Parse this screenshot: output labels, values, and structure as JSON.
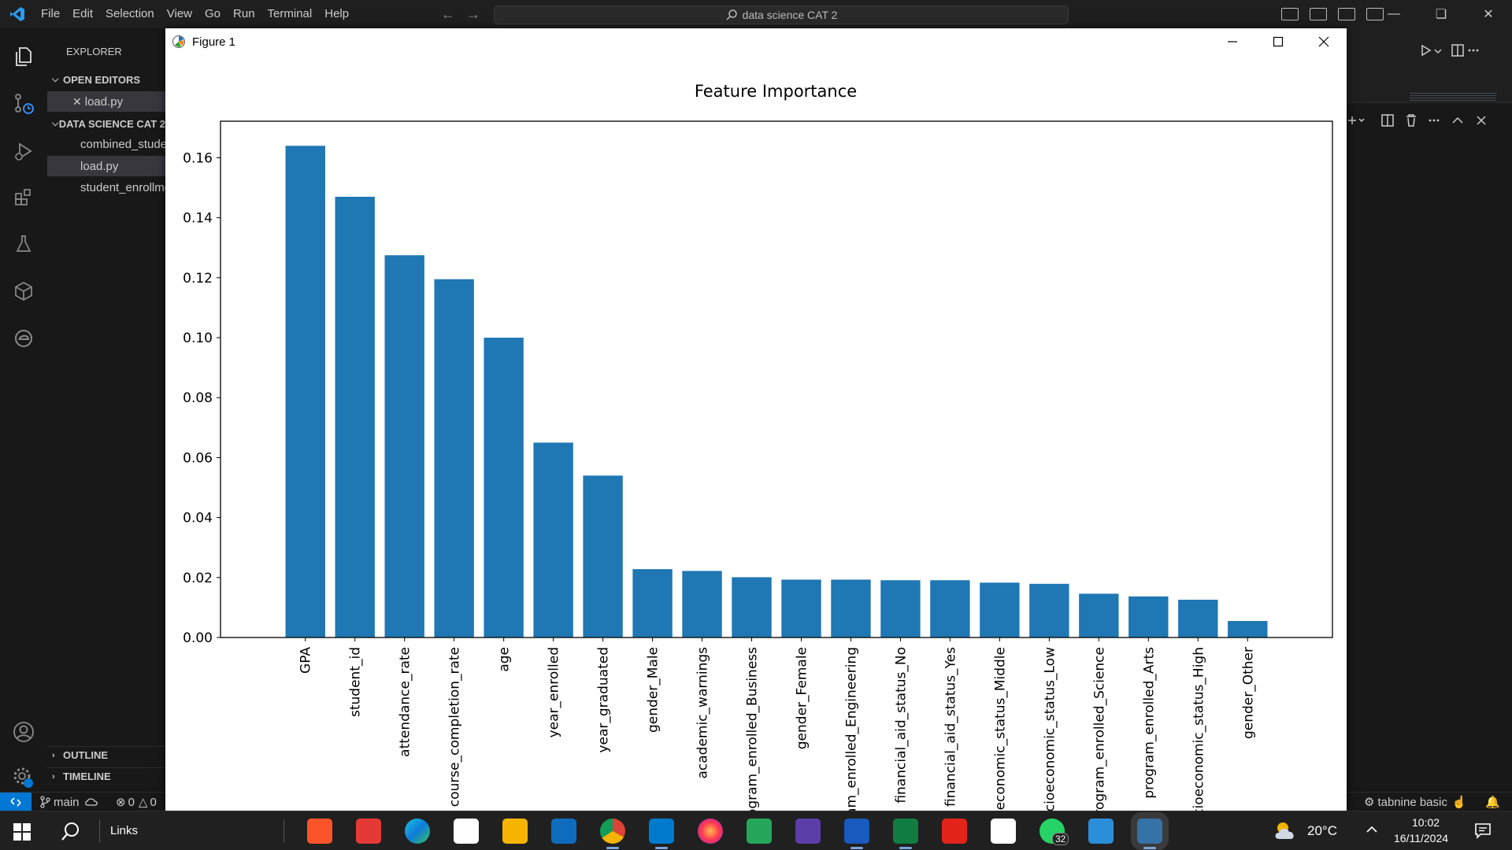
{
  "titlebar": {
    "menus": [
      "File",
      "Edit",
      "Selection",
      "View",
      "Go",
      "Run",
      "Terminal",
      "Help"
    ],
    "search_text": "data science CAT 2"
  },
  "sidebar": {
    "header": "EXPLORER",
    "open_editors_label": "OPEN EDITORS",
    "open_editor_file": "load.py",
    "folder_label": "DATA SCIENCE CAT 2",
    "files": [
      "combined_student_data.csv",
      "load.py",
      "student_enrollment.csv"
    ],
    "outline_label": "OUTLINE",
    "timeline_label": "TIMELINE"
  },
  "figure_window": {
    "title": "Figure 1"
  },
  "chart_data": {
    "type": "bar",
    "title": "Feature Importance",
    "xlabel": "",
    "ylabel": "",
    "categories": [
      "GPA",
      "student_id",
      "attendance_rate",
      "course_completion_rate",
      "age",
      "year_enrolled",
      "year_graduated",
      "gender_Male",
      "academic_warnings",
      "program_enrolled_Business",
      "gender_Female",
      "program_enrolled_Engineering",
      "financial_aid_status_No",
      "financial_aid_status_Yes",
      "socioeconomic_status_Middle",
      "socioeconomic_status_Low",
      "program_enrolled_Science",
      "program_enrolled_Arts",
      "socioeconomic_status_High",
      "gender_Other"
    ],
    "values": [
      0.164,
      0.147,
      0.1275,
      0.1195,
      0.1,
      0.065,
      0.054,
      0.0228,
      0.0222,
      0.0201,
      0.0193,
      0.0193,
      0.0191,
      0.0191,
      0.0183,
      0.0179,
      0.0146,
      0.0137,
      0.0126,
      0.0055
    ],
    "yticks": [
      "0.00",
      "0.02",
      "0.04",
      "0.06",
      "0.08",
      "0.10",
      "0.12",
      "0.14",
      "0.16"
    ],
    "ylim": [
      0,
      0.1722
    ],
    "bar_color": "#1f77b4",
    "grid": false
  },
  "statusbar": {
    "branch": "main",
    "errors": "0",
    "warnings": "0",
    "tabnine": "tabnine basic"
  },
  "taskbar": {
    "search_label": "Links",
    "temperature": "20°C",
    "time": "10:02",
    "date": "16/11/2024",
    "whatsapp_badge": "32"
  },
  "colors": {
    "accent": "#0078d4",
    "editor_bg": "#1e1e1e",
    "sidebar_bg": "#181818",
    "taskbar_bg": "#202020"
  }
}
